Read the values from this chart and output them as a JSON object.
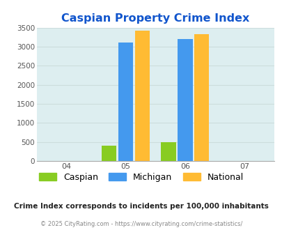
{
  "title": "Caspian Property Crime Index",
  "title_color": "#1155cc",
  "bar_data": {
    "2005": {
      "Caspian": 400,
      "Michigan": 3100,
      "National": 3425
    },
    "2006": {
      "Caspian": 490,
      "Michigan": 3200,
      "National": 3325
    }
  },
  "colors": {
    "Caspian": "#88cc22",
    "Michigan": "#4499ee",
    "National": "#ffbb33"
  },
  "ylim": [
    0,
    3500
  ],
  "yticks": [
    0,
    500,
    1000,
    1500,
    2000,
    2500,
    3000,
    3500
  ],
  "xtick_positions": [
    2004,
    2005,
    2006,
    2007
  ],
  "xtick_labels": [
    "04",
    "05",
    "06",
    "07"
  ],
  "legend_labels": [
    "Caspian",
    "Michigan",
    "National"
  ],
  "footnote1": "Crime Index corresponds to incidents per 100,000 inhabitants",
  "footnote2": "© 2025 CityRating.com - https://www.cityrating.com/crime-statistics/",
  "bg_color": "#ddeef0",
  "bar_width": 0.25,
  "offsets": [
    -0.28,
    0.0,
    0.28
  ]
}
